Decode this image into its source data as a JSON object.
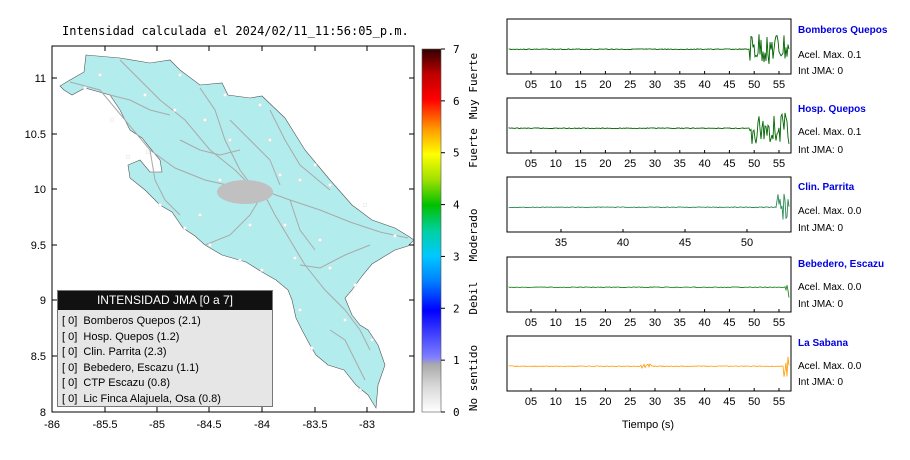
{
  "map": {
    "title": "Intensidad calculada el 2024/02/11_11:56:05_p.m.",
    "x_ticks": [
      "-86",
      "-85.5",
      "-85",
      "-84.5",
      "-84",
      "-83.5",
      "-83"
    ],
    "y_ticks": [
      "11",
      "10.5",
      "10",
      "9.5",
      "9",
      "8.5",
      "8"
    ],
    "land_color": "#b3ecec",
    "road_color": "#a9a9a9"
  },
  "colorbar": {
    "ticks": [
      "7",
      "6",
      "5",
      "4",
      "3",
      "2",
      "1",
      "0"
    ],
    "class_labels": [
      "Muy Fuerte",
      "Fuerte",
      "Moderado",
      "Debil",
      "No sentido"
    ]
  },
  "legend": {
    "title": "INTENSIDAD JMA [0 a 7]",
    "entries": [
      "[ 0]  Bomberos Quepos (2.1)",
      "[ 0]  Hosp. Quepos (1.2)",
      "[ 0]  Clin. Parrita (2.3)",
      "[ 0]  Bebedero, Escazu (1.1)",
      "[ 0]  CTP Escazu (0.8)",
      "[ 0]  Lic Finca Alajuela, Osa (0.8)"
    ]
  },
  "stations": [
    {
      "name": "Bomberos Quepos",
      "accel": "Acel. Max. 0.1",
      "jma": "Int JMA: 0",
      "color": "#006400",
      "ticks": [
        "05",
        "10",
        "15",
        "20",
        "25",
        "30",
        "35",
        "40",
        "45",
        "50",
        "55"
      ]
    },
    {
      "name": "Hosp. Quepos",
      "accel": "Acel. Max. 0.1",
      "jma": "Int JMA: 0",
      "color": "#006400",
      "ticks": [
        "05",
        "10",
        "15",
        "20",
        "25",
        "30",
        "35",
        "40",
        "45",
        "50",
        "55"
      ]
    },
    {
      "name": "Clin. Parrita",
      "accel": "Acel. Max. 0.0",
      "jma": "Int JMA: 0",
      "color": "#2e8b57",
      "ticks": [
        "35",
        "40",
        "45",
        "50"
      ]
    },
    {
      "name": "Bebedero, Escazu",
      "accel": "Acel. Max. 0.0",
      "jma": "Int JMA: 0",
      "color": "#228b22",
      "ticks": [
        "05",
        "10",
        "15",
        "20",
        "25",
        "30",
        "35",
        "40",
        "45",
        "50",
        "55"
      ]
    },
    {
      "name": "La Sabana",
      "accel": "Acel. Max. 0.0",
      "jma": "Int JMA: 0",
      "color": "#ff9900",
      "ticks": [
        "05",
        "10",
        "15",
        "20",
        "25",
        "30",
        "35",
        "40",
        "45",
        "50",
        "55"
      ]
    }
  ],
  "xlabel": "Tiempo (s)",
  "chart_data": [
    {
      "type": "heatmap",
      "title": "Intensidad calculada el 2024/02/11_11:56:05_p.m.",
      "xlim": [
        -86,
        -82.5
      ],
      "ylim": [
        8,
        11.3
      ],
      "colorbar_range": [
        0,
        7
      ]
    },
    {
      "type": "line",
      "series": [
        {
          "name": "Bomberos Quepos",
          "x_range": [
            2,
            57
          ],
          "y_range": [
            -0.1,
            0.1
          ]
        },
        {
          "name": "Hosp. Quepos",
          "x_range": [
            2,
            57
          ],
          "y_range": [
            -0.1,
            0.1
          ]
        },
        {
          "name": "Clin. Parrita",
          "x_range": [
            28,
            53
          ],
          "y_range": [
            -0.05,
            0.05
          ]
        },
        {
          "name": "Bebedero, Escazu",
          "x_range": [
            2,
            57
          ],
          "y_range": [
            -0.05,
            0.05
          ]
        },
        {
          "name": "La Sabana",
          "x_range": [
            2,
            57
          ],
          "y_range": [
            -0.05,
            0.05
          ]
        }
      ],
      "xlabel": "Tiempo (s)"
    }
  ]
}
